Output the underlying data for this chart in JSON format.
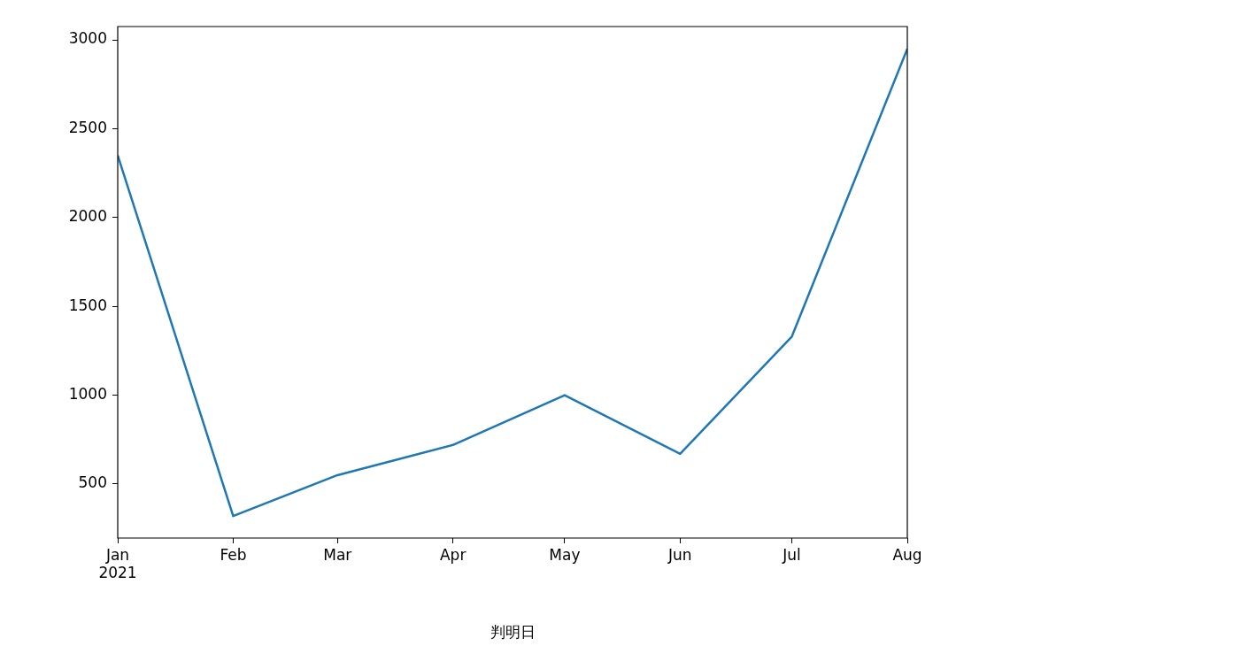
{
  "chart_data": {
    "type": "line",
    "xlabel": "判明日",
    "x": [
      "2021-01",
      "2021-02",
      "2021-03",
      "2021-04",
      "2021-05",
      "2021-06",
      "2021-07",
      "2021-08"
    ],
    "series": [
      {
        "color": "#1f77b4",
        "values": [
          2350,
          320,
          550,
          720,
          1000,
          670,
          1330,
          2950
        ]
      }
    ],
    "xlim": [
      "2021-01",
      "2021-08"
    ],
    "xticks": [
      {
        "value": "2021-01",
        "label": "Jan\n2021"
      },
      {
        "value": "2021-02",
        "label": "Feb"
      },
      {
        "value": "2021-03",
        "label": "Mar"
      },
      {
        "value": "2021-04",
        "label": "Apr"
      },
      {
        "value": "2021-05",
        "label": "May"
      },
      {
        "value": "2021-06",
        "label": "Jun"
      },
      {
        "value": "2021-07",
        "label": "Jul"
      },
      {
        "value": "2021-08",
        "label": "Aug"
      }
    ],
    "ylim": [
      196,
      3075
    ],
    "yticks": [
      500,
      1000,
      1500,
      2000,
      2500,
      3000
    ],
    "grid": false,
    "legend": false,
    "marker": "none",
    "line_style": "solid"
  }
}
